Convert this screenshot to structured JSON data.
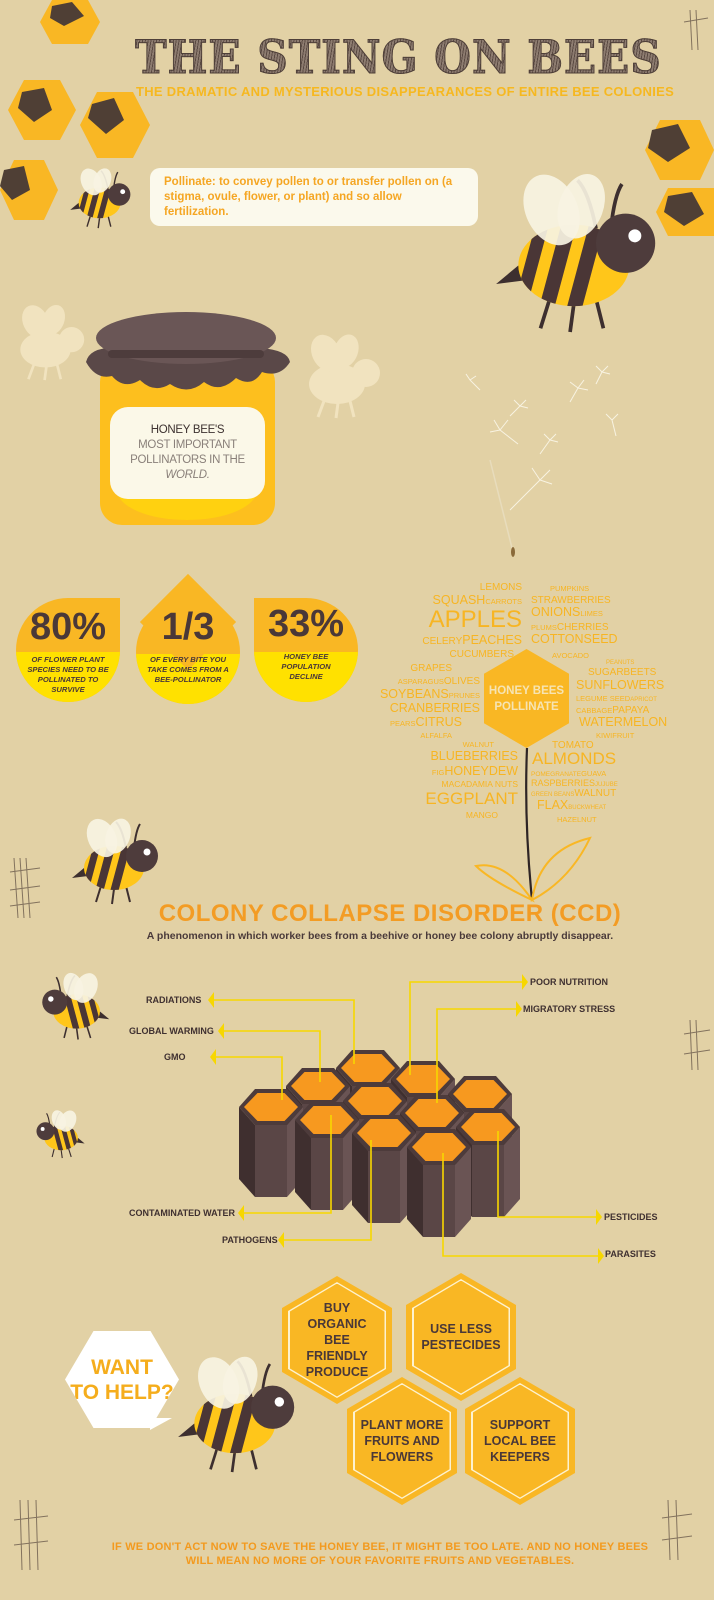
{
  "title": "THE STING ON BEES",
  "subtitle": "THE DRAMATIC AND MYSTERIOUS DISAPPEARANCES OF ENTIRE BEE COLONIES",
  "definition": "Pollinate: to convey pollen to or transfer pollen on (a stigma, ovule, flower, or plant) and so allow fertilization.",
  "jar": {
    "line1": "HONEY BEE'S",
    "line2": "MOST IMPORTANT",
    "line3": "POLLINATORS IN THE",
    "line4": "WORLD."
  },
  "stats": [
    {
      "value": "80%",
      "text": "OF FLOWER PLANT SPECIES NEED TO BE POLLINATED TO SURVIVE"
    },
    {
      "value": "1/3",
      "text": "OF EVERY BITE YOU TAKE COMES FROM A BEE-POLLINATOR"
    },
    {
      "value": "33%",
      "text": "HONEY BEE POPULATION DECLINE"
    }
  ],
  "wordcloud": {
    "center": [
      "HONEY BEES",
      "POLLINATE"
    ],
    "words": [
      "LEMONS",
      "SQUASH",
      "CARROTS",
      "APPLES",
      "CELERY",
      "PEACHES",
      "CUCUMBERS",
      "GRAPES",
      "ASPARAGUS",
      "OLIVES",
      "SOYBEANS",
      "PRUNES",
      "CRANBERRIES",
      "PEARS",
      "CITRUS",
      "ALFALFA",
      "WALNUT",
      "BLUEBERRIES",
      "FIG",
      "HONEYDEW",
      "MACADAMIA NUTS",
      "EGGPLANT",
      "MANGO",
      "PUMPKINS",
      "STRAWBERRIES",
      "ONIONS",
      "LIMES",
      "PLUMS",
      "CHERRIES",
      "COTTONSEED",
      "AVOCADO",
      "PEANUTS",
      "SUGARBEETS",
      "SUNFLOWERS",
      "LEGUME SEED",
      "APRICOT",
      "CABBAGE",
      "PAPAYA",
      "WATERMELON",
      "KIWIFRUIT",
      "TOMATO",
      "ALMONDS",
      "POMEGRANATE",
      "GUAVA",
      "RASPBERRIES",
      "JUJUBE",
      "GREEN BEANS",
      "WALNUT",
      "FLAX",
      "BUCKWHEAT",
      "HAZELNUT"
    ]
  },
  "ccd": {
    "title": "COLONY COLLAPSE DISORDER (CCD)",
    "description": "A phenomenon in which worker bees from a beehive or honey bee colony abruptly disappear.",
    "causes": {
      "radiations": "RADIATIONS",
      "global_warming": "GLOBAL WARMING",
      "gmo": "GMO",
      "poor_nutrition": "POOR NUTRITION",
      "migratory_stress": "MIGRATORY STRESS",
      "contaminated_water": "CONTAMINATED WATER",
      "pathogens": "PATHOGENS",
      "pesticides": "PESTICIDES",
      "parasites": "PARASITES"
    }
  },
  "help": {
    "bubble": [
      "WANT",
      "TO HELP?"
    ],
    "actions": [
      "BUY ORGANIC BEE FRIENDLY PRODUCE",
      "USE LESS PESTECIDES",
      "PLANT MORE FRUITS AND FLOWERS",
      "SUPPORT LOCAL BEE KEEPERS"
    ]
  },
  "footer": {
    "line1": "IF WE DON'T ACT NOW TO SAVE THE HONEY BEE, IT MIGHT BE TOO LATE. AND NO HONEY BEES",
    "line2": "WILL MEAN NO MORE OF YOUR FAVORITE FRUITS AND VEGETABLES."
  },
  "colors": {
    "background": "#e2d1a5",
    "honey_yellow": "#f9b724",
    "bright_yellow": "#ffe100",
    "orange": "#f39c24",
    "dark_brown": "#4a3838",
    "connector": "#f7d700"
  }
}
